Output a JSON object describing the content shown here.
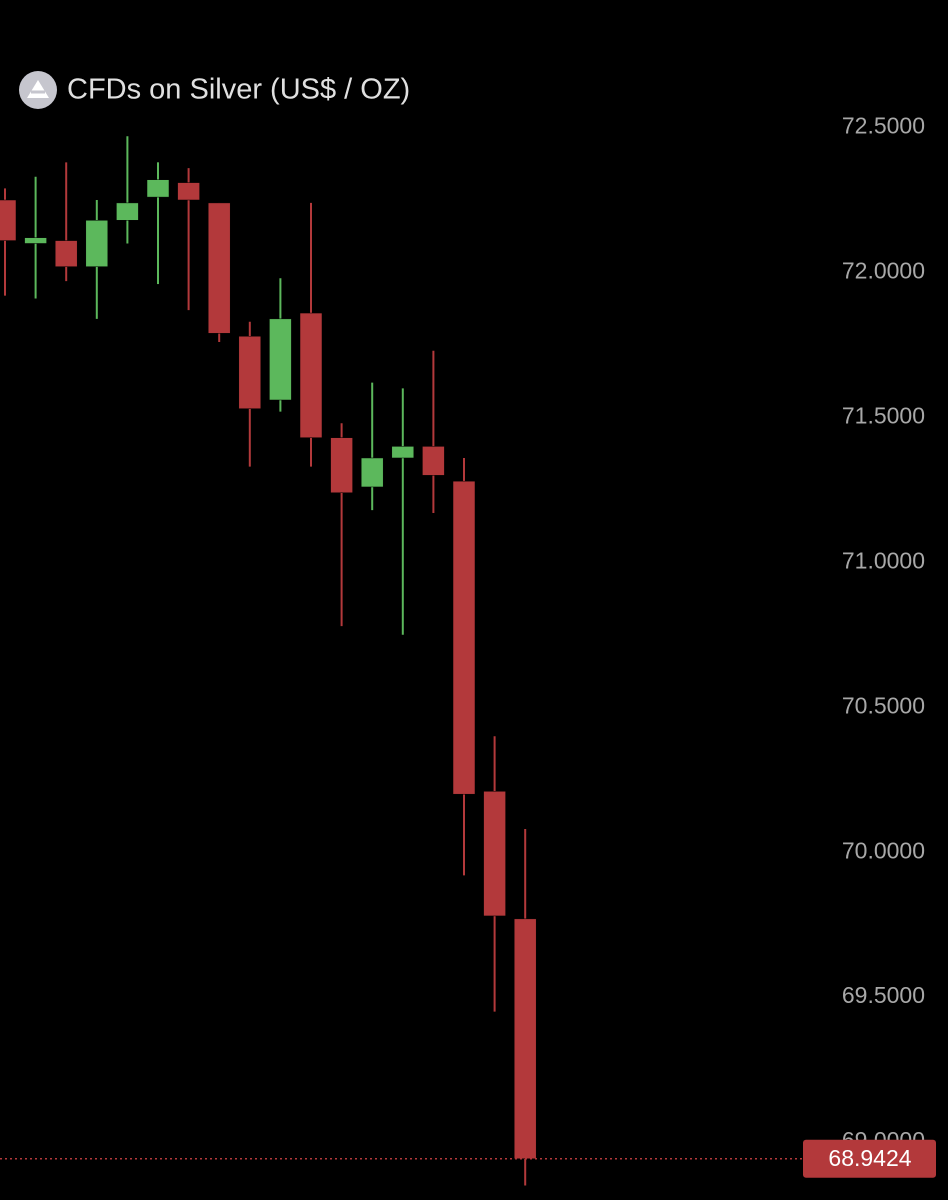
{
  "chart_data": {
    "type": "candlestick",
    "title": "CFDs on Silver (US$ / OZ)",
    "open": [
      72.25,
      72.1,
      72.11,
      72.02,
      72.18,
      72.26,
      72.31,
      72.24,
      71.78,
      71.56,
      71.86,
      71.43,
      71.26,
      71.36,
      71.4,
      71.28,
      70.21,
      69.77
    ],
    "high": [
      72.29,
      72.33,
      72.38,
      72.25,
      72.47,
      72.38,
      72.36,
      72.24,
      71.83,
      71.98,
      72.24,
      71.48,
      71.62,
      71.6,
      71.73,
      71.36,
      70.4,
      70.08
    ],
    "low": [
      71.92,
      71.91,
      71.97,
      71.84,
      72.1,
      71.96,
      71.87,
      71.76,
      71.33,
      71.52,
      71.33,
      70.78,
      71.18,
      70.75,
      71.17,
      69.92,
      69.45,
      68.85
    ],
    "close": [
      72.11,
      72.12,
      72.02,
      72.18,
      72.24,
      72.32,
      72.25,
      71.79,
      71.53,
      71.84,
      71.43,
      71.24,
      71.36,
      71.4,
      71.3,
      70.2,
      69.78,
      68.9424
    ],
    "up_color": "#5cb85c",
    "down_color": "#b3393b",
    "ylim": [
      68.8,
      72.94
    ],
    "yticks": [
      {
        "value": 69.0,
        "label": "69.0000"
      },
      {
        "value": 69.5,
        "label": "69.5000"
      },
      {
        "value": 70.0,
        "label": "70.0000"
      },
      {
        "value": 70.5,
        "label": "70.5000"
      },
      {
        "value": 71.0,
        "label": "71.0000"
      },
      {
        "value": 71.5,
        "label": "71.5000"
      },
      {
        "value": 72.0,
        "label": "72.0000"
      },
      {
        "value": 72.5,
        "label": "72.5000"
      }
    ],
    "last_price": 68.9424
  }
}
